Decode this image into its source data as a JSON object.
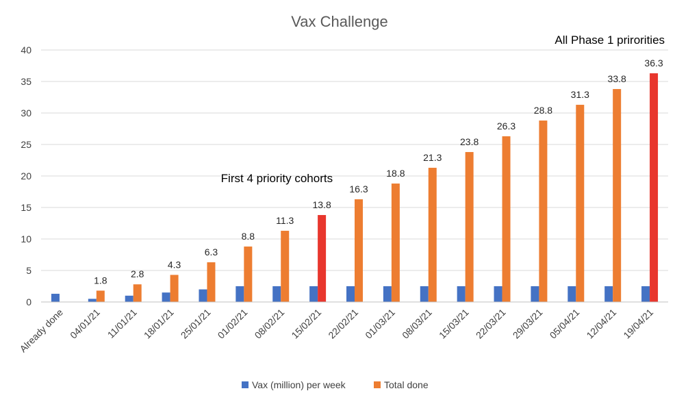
{
  "chart_data": {
    "type": "bar",
    "title": "Vax Challenge",
    "xlabel": "",
    "ylabel": "",
    "ylim": [
      0,
      40
    ],
    "yticks": [
      0,
      5,
      10,
      15,
      20,
      25,
      30,
      35,
      40
    ],
    "grid": true,
    "legend_position": "bottom",
    "categories": [
      "Already done",
      "04/01/21",
      "11/01/21",
      "18/01/21",
      "25/01/21",
      "01/02/21",
      "08/02/21",
      "15/02/21",
      "22/02/21",
      "01/03/21",
      "08/03/21",
      "15/03/21",
      "22/03/21",
      "29/03/21",
      "05/04/21",
      "12/04/21",
      "19/04/21"
    ],
    "series": [
      {
        "name": "Vax (million) per week",
        "color": "#4472C4",
        "values": [
          1.3,
          0.5,
          1.0,
          1.5,
          2.0,
          2.5,
          2.5,
          2.5,
          2.5,
          2.5,
          2.5,
          2.5,
          2.5,
          2.5,
          2.5,
          2.5,
          2.5
        ]
      },
      {
        "name": "Total done",
        "color": "#ED7D31",
        "highlight_color": "#E8362D",
        "highlight_indices": [
          7,
          16
        ],
        "values": [
          null,
          1.8,
          2.8,
          4.3,
          6.3,
          8.8,
          11.3,
          13.8,
          16.3,
          18.8,
          21.3,
          23.8,
          26.3,
          28.8,
          31.3,
          33.8,
          36.3
        ],
        "data_labels": [
          "",
          "1.8",
          "2.8",
          "4.3",
          "6.3",
          "8.8",
          "11.3",
          "13.8",
          "16.3",
          "18.8",
          "21.3",
          "23.8",
          "26.3",
          "28.8",
          "31.3",
          "33.8",
          "36.3"
        ]
      }
    ],
    "annotations": [
      {
        "text": "First 4 priority cohorts",
        "category_index": 7,
        "value": 19
      },
      {
        "text": "All Phase 1 prirorities",
        "category_index": 16,
        "value": 41
      }
    ]
  }
}
